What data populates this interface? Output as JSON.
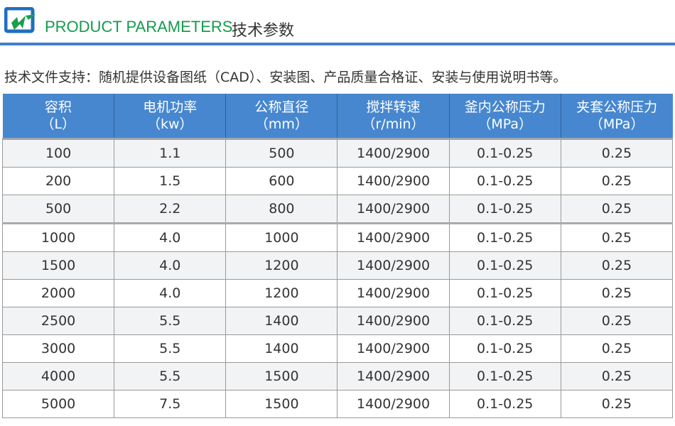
{
  "header": {
    "title_en": "PRODUCT PARAMETERS",
    "title_cn": "技术参数",
    "logo_icon": "logo-icon",
    "accent_color": "#3f7fcc",
    "title_color": "#159a4e"
  },
  "note": "技术文件支持：随机提供设备图纸（CAD）、安装图、产品质量合格证、安装与使用说明书等。",
  "table": {
    "header_color": "#4787cf",
    "columns": [
      {
        "name": "容积",
        "unit": "（L）"
      },
      {
        "name": "电机功率",
        "unit": "（kw）"
      },
      {
        "name": "公称直径",
        "unit": "（mm）"
      },
      {
        "name": "搅拌转速",
        "unit": "（r/min）"
      },
      {
        "name": "釜内公称压力",
        "unit": "（MPa）"
      },
      {
        "name": "夹套公称压力",
        "unit": "（MPa）"
      }
    ],
    "rows": [
      [
        "100",
        "1.1",
        "500",
        "1400/2900",
        "0.1-0.25",
        "0.25"
      ],
      [
        "200",
        "1.5",
        "600",
        "1400/2900",
        "0.1-0.25",
        "0.25"
      ],
      [
        "500",
        "2.2",
        "800",
        "1400/2900",
        "0.1-0.25",
        "0.25"
      ],
      [
        "1000",
        "4.0",
        "1000",
        "1400/2900",
        "0.1-0.25",
        "0.25"
      ],
      [
        "1500",
        "4.0",
        "1200",
        "1400/2900",
        "0.1-0.25",
        "0.25"
      ],
      [
        "2000",
        "4.0",
        "1200",
        "1400/2900",
        "0.1-0.25",
        "0.25"
      ],
      [
        "2500",
        "5.5",
        "1400",
        "1400/2900",
        "0.1-0.25",
        "0.25"
      ],
      [
        "3000",
        "5.5",
        "1400",
        "1400/2900",
        "0.1-0.25",
        "0.25"
      ],
      [
        "4000",
        "5.5",
        "1500",
        "1400/2900",
        "0.1-0.25",
        "0.25"
      ],
      [
        "5000",
        "7.5",
        "1500",
        "1400/2900",
        "0.1-0.25",
        "0.25"
      ]
    ]
  }
}
